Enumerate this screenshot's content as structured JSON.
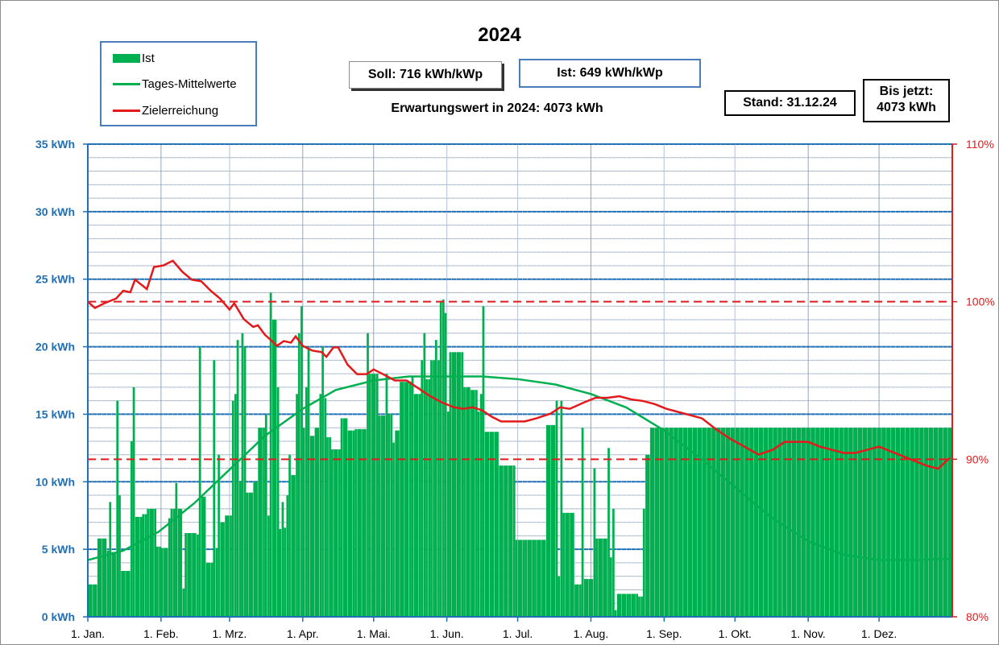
{
  "chart_data": {
    "type": "bar",
    "title": "2024",
    "legend": {
      "position": "top-left",
      "items": [
        {
          "name": "Ist",
          "kind": "bar",
          "color": "#00b050"
        },
        {
          "name": "Tages-Mittelwerte",
          "kind": "line",
          "color": "#00b050"
        },
        {
          "name": "Zielerreichung",
          "kind": "line",
          "color": "#e31a1c"
        }
      ]
    },
    "y_left": {
      "ylim": [
        0,
        35
      ],
      "ticks": [
        0,
        5,
        10,
        15,
        20,
        25,
        30,
        35
      ],
      "tick_labels": [
        "0 kWh",
        "5 kWh",
        "10 kWh",
        "15 kWh",
        "20 kWh",
        "25 kWh",
        "30 kWh",
        "35 kWh"
      ],
      "color": "#1f6fb5"
    },
    "y_right": {
      "ylim": [
        80,
        110
      ],
      "ticks": [
        80,
        90,
        100,
        110
      ],
      "tick_labels": [
        "80%",
        "90%",
        "100%",
        "110%"
      ],
      "color": "#e31a1c"
    },
    "x_ticks": [
      {
        "label": "1. Jan.",
        "day": 0
      },
      {
        "label": "1. Feb.",
        "day": 31
      },
      {
        "label": "1. Mrz.",
        "day": 60
      },
      {
        "label": "1. Apr.",
        "day": 91
      },
      {
        "label": "1. Mai.",
        "day": 121
      },
      {
        "label": "1. Jun.",
        "day": 152
      },
      {
        "label": "1. Jul.",
        "day": 182
      },
      {
        "label": "1. Aug.",
        "day": 213
      },
      {
        "label": "1. Sep.",
        "day": 244
      },
      {
        "label": "1. Okt.",
        "day": 274
      },
      {
        "label": "1. Nov.",
        "day": 305
      },
      {
        "label": "1. Dez.",
        "day": 335
      }
    ],
    "days_in_year": 366,
    "reference_lines": [
      {
        "value": 100,
        "axis": "right",
        "color": "#e31a1c",
        "style": "dashed"
      },
      {
        "value": 90,
        "axis": "right",
        "color": "#e31a1c",
        "style": "dashed"
      }
    ],
    "grid": true,
    "series": [
      {
        "name": "Ist",
        "type": "bar",
        "color": "#00b050",
        "points": [
          [
            0,
            2.4
          ],
          [
            4,
            5.8
          ],
          [
            8,
            4.9
          ],
          [
            9,
            8.5
          ],
          [
            10,
            4.8
          ],
          [
            12,
            16.0
          ],
          [
            13,
            9.0
          ],
          [
            14,
            3.4
          ],
          [
            18,
            13.0
          ],
          [
            19,
            17.0
          ],
          [
            20,
            7.4
          ],
          [
            23,
            7.6
          ],
          [
            25,
            8.0
          ],
          [
            29,
            5.2
          ],
          [
            31,
            5.1
          ],
          [
            34,
            7.3
          ],
          [
            35,
            8.0
          ],
          [
            37,
            9.9
          ],
          [
            38,
            8.0
          ],
          [
            40,
            2.1
          ],
          [
            41,
            6.2
          ],
          [
            46,
            6.1
          ],
          [
            47,
            20.0
          ],
          [
            48,
            8.9
          ],
          [
            50,
            4.0
          ],
          [
            53,
            19.0
          ],
          [
            54,
            5.1
          ],
          [
            55,
            12.0
          ],
          [
            56,
            7.0
          ],
          [
            58,
            7.5
          ],
          [
            61,
            16.0
          ],
          [
            62,
            16.5
          ],
          [
            63,
            20.5
          ],
          [
            64,
            10.0
          ],
          [
            65,
            21.0
          ],
          [
            66,
            20.0
          ],
          [
            67,
            9.2
          ],
          [
            70,
            10.0
          ],
          [
            72,
            14.0
          ],
          [
            75,
            15.0
          ],
          [
            76,
            7.5
          ],
          [
            77,
            24.0
          ],
          [
            78,
            22.0
          ],
          [
            80,
            17.0
          ],
          [
            81,
            6.5
          ],
          [
            82,
            8.5
          ],
          [
            83,
            6.6
          ],
          [
            84,
            9.0
          ],
          [
            85,
            12.0
          ],
          [
            86,
            10.5
          ],
          [
            88,
            16.5
          ],
          [
            89,
            21.0
          ],
          [
            90,
            23.0
          ],
          [
            91,
            14.0
          ],
          [
            92,
            17.0
          ],
          [
            93,
            20.0
          ],
          [
            94,
            13.4
          ],
          [
            96,
            14.0
          ],
          [
            98,
            16.5
          ],
          [
            99,
            20.0
          ],
          [
            100,
            16.2
          ],
          [
            101,
            13.3
          ],
          [
            103,
            12.4
          ],
          [
            107,
            14.7
          ],
          [
            110,
            13.8
          ],
          [
            113,
            13.9
          ],
          [
            118,
            21.0
          ],
          [
            119,
            18.0
          ],
          [
            120,
            18.0
          ],
          [
            123,
            14.9
          ],
          [
            126,
            18.0
          ],
          [
            127,
            15.0
          ],
          [
            129,
            12.9
          ],
          [
            130,
            13.8
          ],
          [
            132,
            17.4
          ],
          [
            136,
            17.4
          ],
          [
            137,
            17.8
          ],
          [
            138,
            16.5
          ],
          [
            141,
            19.0
          ],
          [
            142,
            21.0
          ],
          [
            143,
            17.6
          ],
          [
            144,
            17.6
          ],
          [
            145,
            19.0
          ],
          [
            147,
            20.5
          ],
          [
            148,
            19.0
          ],
          [
            149,
            23.4
          ],
          [
            150,
            23.5
          ],
          [
            151,
            22.5
          ],
          [
            152,
            15.2
          ],
          [
            153,
            19.6
          ],
          [
            159,
            17.0
          ],
          [
            162,
            16.8
          ],
          [
            165,
            15.2
          ],
          [
            166,
            16.5
          ],
          [
            167,
            23.0
          ],
          [
            168,
            13.7
          ],
          [
            170,
            13.7
          ],
          [
            172,
            13.7
          ],
          [
            174,
            11.2
          ],
          [
            176,
            11.2
          ],
          [
            178,
            11.2
          ],
          [
            180,
            11.2
          ],
          [
            181,
            5.7
          ],
          [
            185,
            5.7
          ],
          [
            189,
            5.7
          ],
          [
            194,
            14.2
          ],
          [
            198,
            16.0
          ],
          [
            199,
            3.0
          ],
          [
            200,
            16.0
          ],
          [
            201,
            7.7
          ],
          [
            206,
            2.4
          ],
          [
            209,
            14.0
          ],
          [
            210,
            2.8
          ],
          [
            214,
            11.0
          ],
          [
            215,
            5.8
          ],
          [
            220,
            12.5
          ],
          [
            221,
            4.4
          ],
          [
            222,
            8.0
          ],
          [
            223,
            0.5
          ],
          [
            224,
            1.7
          ],
          [
            229,
            1.7
          ],
          [
            233,
            1.5
          ],
          [
            235,
            8.0
          ],
          [
            236,
            12.0
          ],
          [
            238,
            14.0
          ]
        ]
      },
      {
        "name": "Tages-Mittelwerte",
        "type": "line",
        "color": "#00b050",
        "points": [
          [
            0,
            4.2
          ],
          [
            15,
            4.9
          ],
          [
            30,
            6.3
          ],
          [
            45,
            8.4
          ],
          [
            60,
            10.9
          ],
          [
            75,
            13.4
          ],
          [
            91,
            15.4
          ],
          [
            105,
            16.8
          ],
          [
            121,
            17.5
          ],
          [
            136,
            17.8
          ],
          [
            152,
            17.8
          ],
          [
            167,
            17.8
          ],
          [
            182,
            17.6
          ],
          [
            198,
            17.2
          ],
          [
            213,
            16.5
          ],
          [
            228,
            15.5
          ],
          [
            244,
            13.8
          ],
          [
            259,
            11.8
          ],
          [
            274,
            9.6
          ],
          [
            289,
            7.4
          ],
          [
            305,
            5.6
          ],
          [
            320,
            4.6
          ],
          [
            335,
            4.2
          ],
          [
            350,
            4.2
          ],
          [
            365,
            4.3
          ]
        ]
      },
      {
        "name": "Zielerreichung",
        "type": "line",
        "color": "#e31a1c",
        "points": [
          [
            0,
            100
          ],
          [
            3,
            99.6
          ],
          [
            7,
            99.9
          ],
          [
            12,
            100.2
          ],
          [
            15,
            100.7
          ],
          [
            18,
            100.6
          ],
          [
            20,
            101.4
          ],
          [
            25,
            100.8
          ],
          [
            28,
            102.2
          ],
          [
            32,
            102.3
          ],
          [
            36,
            102.6
          ],
          [
            40,
            101.9
          ],
          [
            44,
            101.4
          ],
          [
            48,
            101.3
          ],
          [
            52,
            100.7
          ],
          [
            56,
            100.2
          ],
          [
            60,
            99.5
          ],
          [
            62,
            99.9
          ],
          [
            66,
            98.9
          ],
          [
            70,
            98.4
          ],
          [
            72,
            98.5
          ],
          [
            75,
            97.9
          ],
          [
            78,
            97.5
          ],
          [
            80,
            97.2
          ],
          [
            83,
            97.5
          ],
          [
            86,
            97.4
          ],
          [
            88,
            97.8
          ],
          [
            91,
            97.2
          ],
          [
            95,
            96.9
          ],
          [
            99,
            96.8
          ],
          [
            101,
            96.5
          ],
          [
            104,
            97.1
          ],
          [
            106,
            97.1
          ],
          [
            110,
            96.0
          ],
          [
            114,
            95.4
          ],
          [
            118,
            95.4
          ],
          [
            121,
            95.7
          ],
          [
            125,
            95.4
          ],
          [
            130,
            95.0
          ],
          [
            135,
            95.0
          ],
          [
            140,
            94.5
          ],
          [
            145,
            94.0
          ],
          [
            150,
            93.6
          ],
          [
            155,
            93.3
          ],
          [
            159,
            93.2
          ],
          [
            163,
            93.3
          ],
          [
            167,
            93.1
          ],
          [
            171,
            92.7
          ],
          [
            175,
            92.4
          ],
          [
            180,
            92.4
          ],
          [
            185,
            92.4
          ],
          [
            190,
            92.6
          ],
          [
            196,
            92.9
          ],
          [
            200,
            93.3
          ],
          [
            204,
            93.2
          ],
          [
            210,
            93.6
          ],
          [
            215,
            93.9
          ],
          [
            220,
            93.9
          ],
          [
            225,
            94.0
          ],
          [
            230,
            93.8
          ],
          [
            235,
            93.7
          ],
          [
            240,
            93.5
          ],
          [
            245,
            93.2
          ],
          [
            250,
            93.0
          ],
          [
            260,
            92.6
          ],
          [
            266,
            91.9
          ],
          [
            272,
            91.3
          ],
          [
            278,
            90.8
          ],
          [
            284,
            90.3
          ],
          [
            290,
            90.6
          ],
          [
            295,
            91.1
          ],
          [
            300,
            91.1
          ],
          [
            305,
            91.1
          ],
          [
            310,
            90.8
          ],
          [
            315,
            90.6
          ],
          [
            320,
            90.4
          ],
          [
            325,
            90.4
          ],
          [
            330,
            90.6
          ],
          [
            335,
            90.8
          ],
          [
            340,
            90.5
          ],
          [
            345,
            90.2
          ],
          [
            350,
            89.9
          ],
          [
            355,
            89.6
          ],
          [
            360,
            89.4
          ],
          [
            365,
            90.1
          ]
        ]
      }
    ]
  },
  "header": {
    "soll": "Soll: 716 kWh/kWp",
    "ist": "Ist: 649 kWh/kWp",
    "erwartung": "Erwartungswert in 2024: 4073 kWh",
    "stand": "Stand: 31.12.24",
    "bisjetzt_line1": "Bis jetzt:",
    "bisjetzt_line2": "4073 kWh"
  }
}
